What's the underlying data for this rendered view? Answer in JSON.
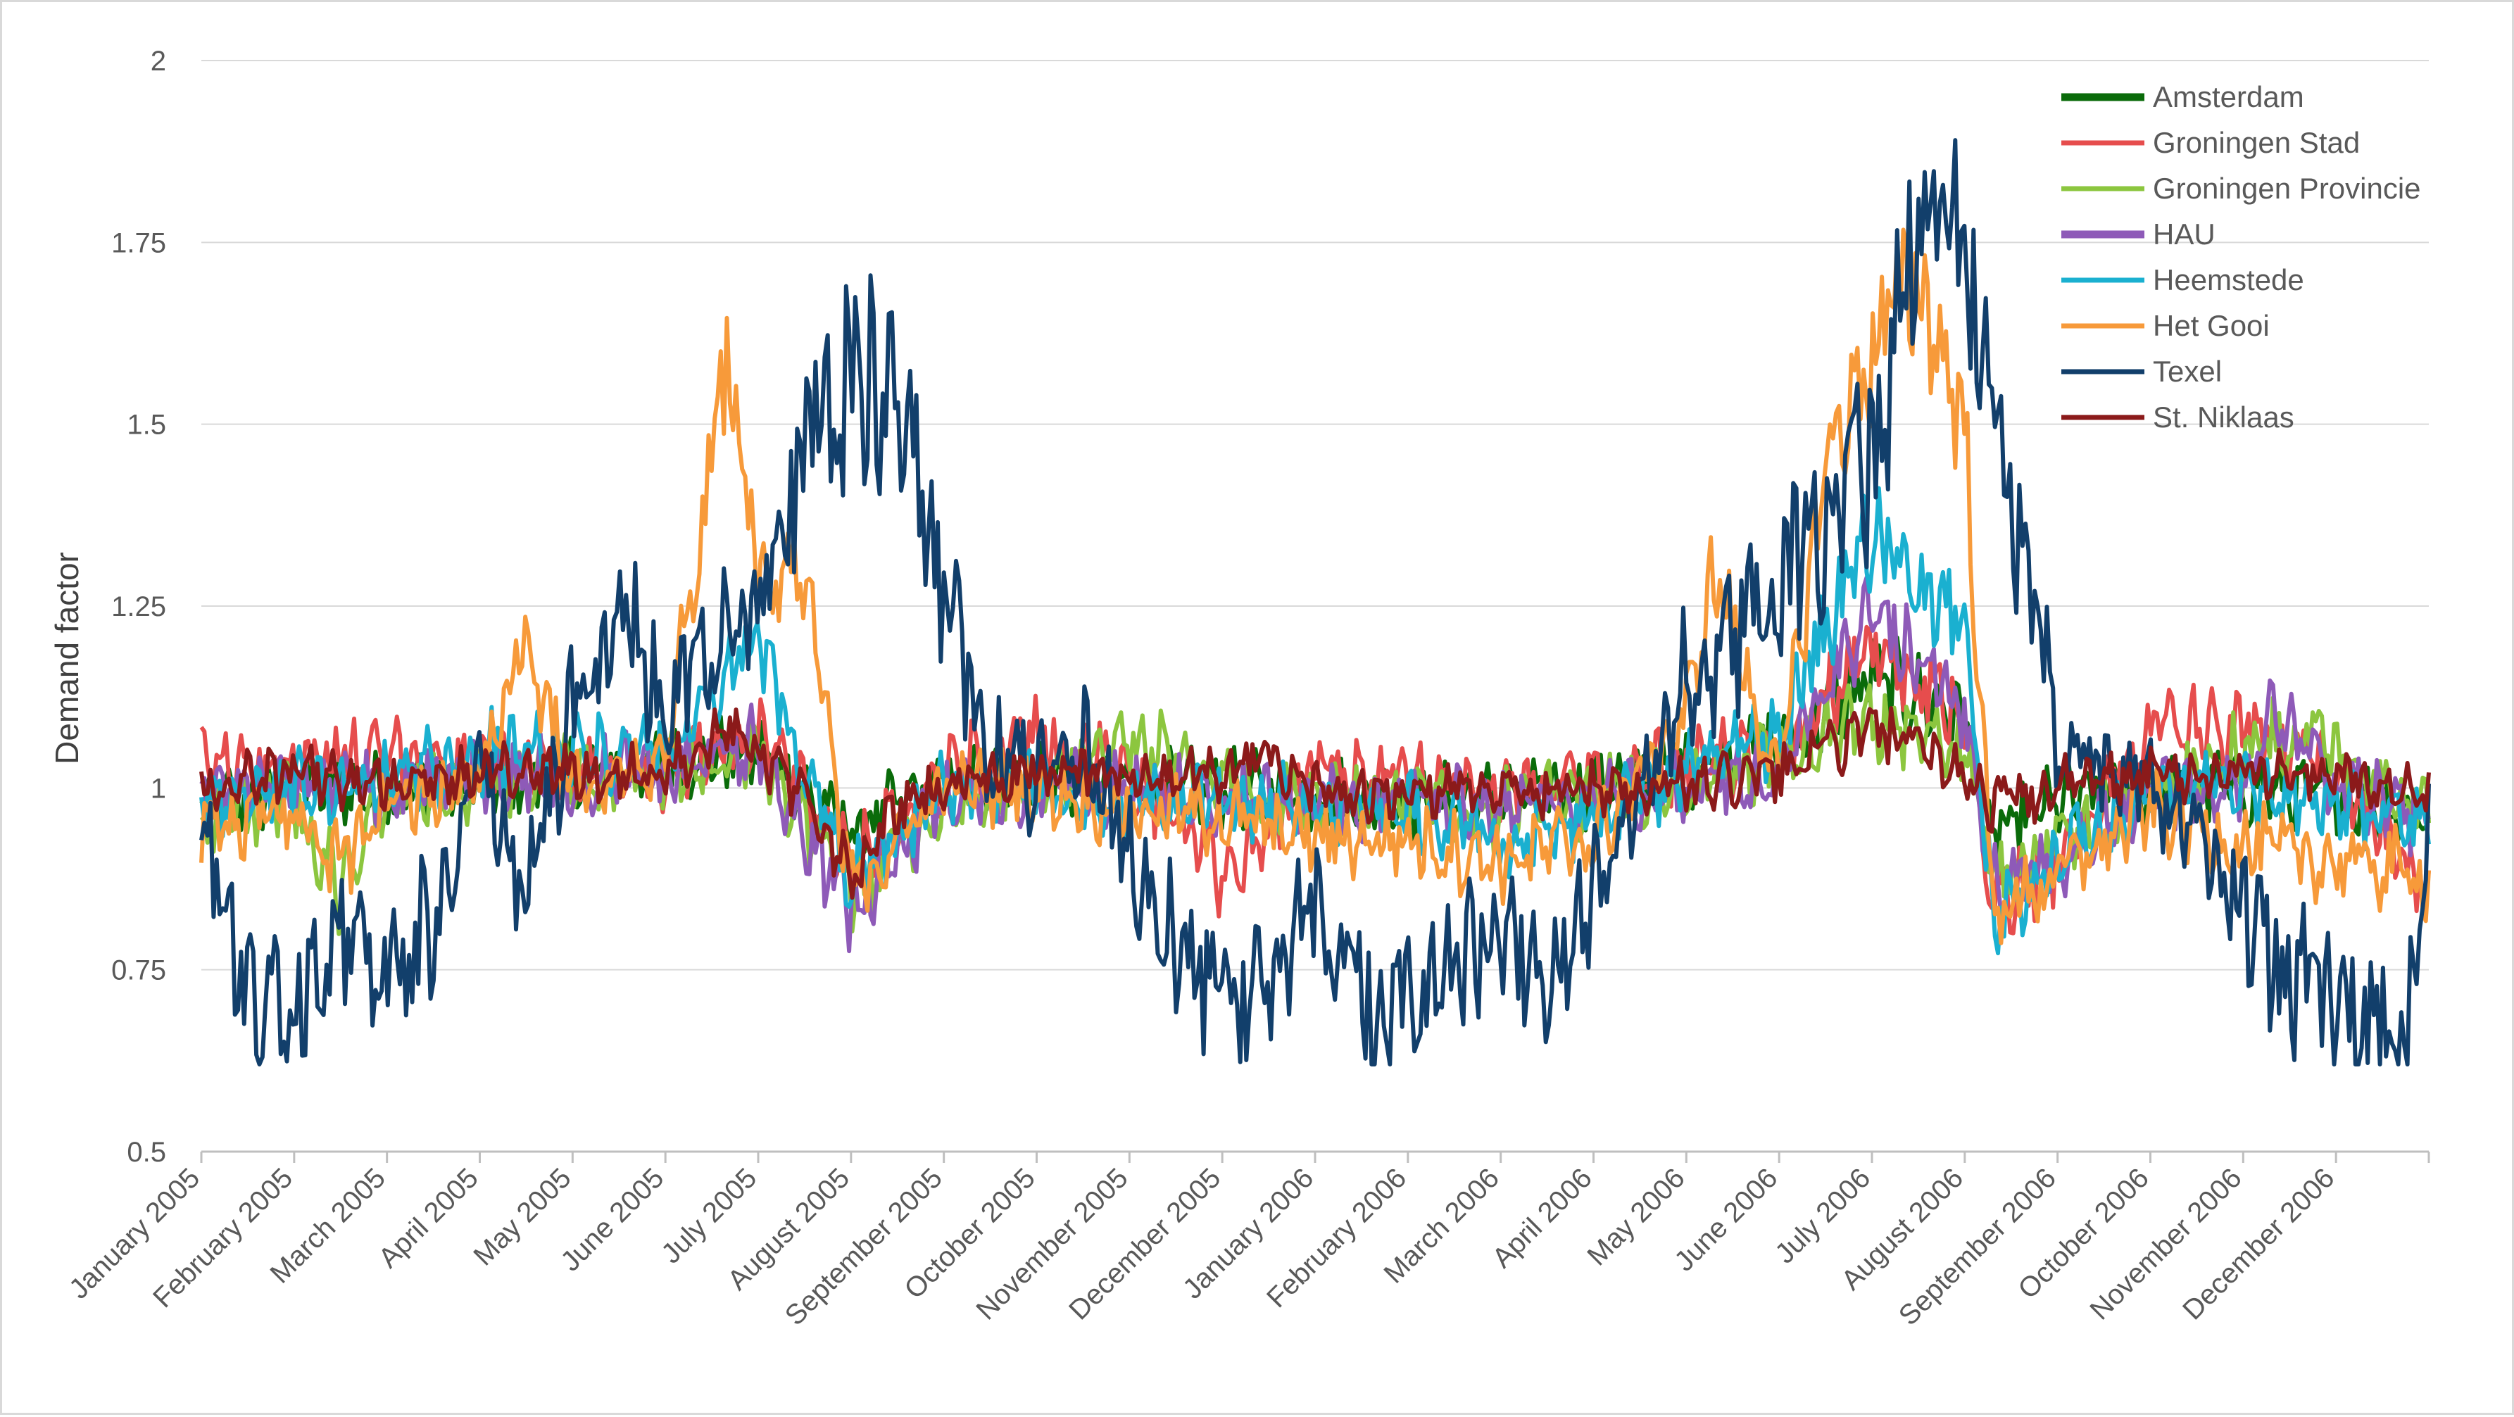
{
  "chart_data": {
    "type": "line",
    "title": "",
    "xlabel": "",
    "ylabel": "Demand factor",
    "ylim": [
      0.5,
      2
    ],
    "yticks": [
      0.5,
      0.75,
      1,
      1.25,
      1.5,
      1.75,
      2
    ],
    "ytick_labels": [
      "0.5",
      "0.75",
      "1",
      "1.25",
      "1.5",
      "1.75",
      "2"
    ],
    "grid": "horizontal",
    "legend_position": "top-right",
    "x_unit": "month index (0 = start of January 2005, 24 = end of December 2006)",
    "xlim": [
      0,
      24
    ],
    "x_tick_labels": [
      "January 2005",
      "February 2005",
      "March 2005",
      "April 2005",
      "May 2005",
      "June 2005",
      "July 2005",
      "August 2005",
      "September 2005",
      "October 2005",
      "November 2005",
      "December 2005",
      "January 2006",
      "February 2006",
      "March 2006",
      "April 2006",
      "May 2006",
      "June 2006",
      "July 2006",
      "August 2006",
      "September 2006",
      "October 2006",
      "November 2006",
      "December 2006"
    ],
    "series": [
      {
        "name": "Amsterdam",
        "color": "#0a6b0a",
        "keypoints": [
          [
            0,
            0.97
          ],
          [
            1,
            1.0
          ],
          [
            2,
            1.0
          ],
          [
            3,
            1.01
          ],
          [
            4,
            1.02
          ],
          [
            5,
            1.03
          ],
          [
            6,
            1.05
          ],
          [
            7,
            0.94
          ],
          [
            8,
            1.01
          ],
          [
            9,
            1.02
          ],
          [
            10,
            1.0
          ],
          [
            11,
            1.0
          ],
          [
            12,
            0.99
          ],
          [
            13,
            0.98
          ],
          [
            14,
            0.99
          ],
          [
            15,
            1.0
          ],
          [
            16,
            1.03
          ],
          [
            17,
            1.06
          ],
          [
            18,
            1.15
          ],
          [
            19,
            1.1
          ],
          [
            19.3,
            0.93
          ],
          [
            20,
            0.98
          ],
          [
            21,
            1.0
          ],
          [
            22,
            1.0
          ],
          [
            23,
            0.99
          ],
          [
            24,
            0.96
          ]
        ]
      },
      {
        "name": "Groningen Stad",
        "color": "#e64d4d",
        "keypoints": [
          [
            0,
            1.03
          ],
          [
            1,
            1.04
          ],
          [
            2,
            1.04
          ],
          [
            3,
            1.03
          ],
          [
            4,
            1.03
          ],
          [
            5,
            1.02
          ],
          [
            6,
            1.08
          ],
          [
            7,
            0.9
          ],
          [
            8,
            1.02
          ],
          [
            9,
            1.07
          ],
          [
            10,
            1.02
          ],
          [
            11,
            0.88
          ],
          [
            12,
            1.02
          ],
          [
            13,
            1.01
          ],
          [
            14,
            1.0
          ],
          [
            15,
            1.01
          ],
          [
            16,
            1.03
          ],
          [
            17,
            1.05
          ],
          [
            18,
            1.18
          ],
          [
            19,
            1.1
          ],
          [
            19.3,
            0.83
          ],
          [
            20,
            0.9
          ],
          [
            21,
            1.08
          ],
          [
            22,
            1.08
          ],
          [
            23,
            1.03
          ],
          [
            24,
            0.85
          ]
        ]
      },
      {
        "name": "Groningen Provincie",
        "color": "#8cc63f",
        "keypoints": [
          [
            0,
            0.96
          ],
          [
            1,
            0.98
          ],
          [
            1.5,
            0.86
          ],
          [
            2,
            0.99
          ],
          [
            3,
            1.0
          ],
          [
            4,
            1.02
          ],
          [
            5,
            1.02
          ],
          [
            6,
            1.05
          ],
          [
            7,
            0.86
          ],
          [
            8,
            0.98
          ],
          [
            9,
            1.0
          ],
          [
            10,
            1.07
          ],
          [
            11,
            1.0
          ],
          [
            12,
            0.99
          ],
          [
            13,
            0.98
          ],
          [
            14,
            0.97
          ],
          [
            15,
            0.99
          ],
          [
            16,
            1.0
          ],
          [
            17,
            1.04
          ],
          [
            18,
            1.1
          ],
          [
            19,
            1.05
          ],
          [
            19.3,
            0.88
          ],
          [
            20,
            0.92
          ],
          [
            21,
            1.0
          ],
          [
            22,
            1.05
          ],
          [
            22.7,
            1.08
          ],
          [
            23,
            1.05
          ],
          [
            24,
            0.97
          ]
        ]
      },
      {
        "name": "HAU",
        "color": "#8e5ab8",
        "keypoints": [
          [
            0,
            1.0
          ],
          [
            1,
            1.01
          ],
          [
            2,
            1.0
          ],
          [
            3,
            1.02
          ],
          [
            4,
            1.02
          ],
          [
            5,
            1.03
          ],
          [
            6,
            1.06
          ],
          [
            7,
            0.83
          ],
          [
            8,
            0.98
          ],
          [
            9,
            1.0
          ],
          [
            10,
            1.0
          ],
          [
            11,
            0.98
          ],
          [
            12,
            0.99
          ],
          [
            13,
            0.98
          ],
          [
            14,
            0.98
          ],
          [
            15,
            0.99
          ],
          [
            16,
            1.0
          ],
          [
            17,
            1.02
          ],
          [
            18,
            1.25
          ],
          [
            19,
            1.1
          ],
          [
            19.3,
            0.86
          ],
          [
            20,
            0.9
          ],
          [
            21,
            1.0
          ],
          [
            22,
            1.0
          ],
          [
            22.3,
            1.1
          ],
          [
            23,
            1.0
          ],
          [
            24,
            0.96
          ]
        ]
      },
      {
        "name": "Heemstede",
        "color": "#1ab0d0",
        "keypoints": [
          [
            0,
            0.98
          ],
          [
            1,
            1.0
          ],
          [
            2,
            1.01
          ],
          [
            3,
            1.05
          ],
          [
            4,
            1.05
          ],
          [
            5,
            1.05
          ],
          [
            6,
            1.2
          ],
          [
            7,
            0.86
          ],
          [
            8,
            1.0
          ],
          [
            9,
            1.0
          ],
          [
            10,
            0.98
          ],
          [
            11,
            0.98
          ],
          [
            12,
            0.98
          ],
          [
            13,
            0.97
          ],
          [
            14,
            0.92
          ],
          [
            15,
            0.96
          ],
          [
            16,
            1.02
          ],
          [
            17,
            1.08
          ],
          [
            18,
            1.35
          ],
          [
            19,
            1.2
          ],
          [
            19.3,
            0.83
          ],
          [
            20,
            0.9
          ],
          [
            21,
            1.0
          ],
          [
            22,
            1.0
          ],
          [
            23,
            0.98
          ],
          [
            24,
            0.94
          ]
        ]
      },
      {
        "name": "Het Gooi",
        "color": "#f79a3a",
        "keypoints": [
          [
            0,
            0.95
          ],
          [
            1,
            0.97
          ],
          [
            1.5,
            0.9
          ],
          [
            2,
            0.98
          ],
          [
            3,
            1.02
          ],
          [
            3.5,
            1.2
          ],
          [
            4,
            1.0
          ],
          [
            5,
            1.05
          ],
          [
            5.7,
            1.6
          ],
          [
            6,
            1.3
          ],
          [
            6.5,
            1.3
          ],
          [
            7,
            0.86
          ],
          [
            8,
            1.0
          ],
          [
            9,
            1.0
          ],
          [
            10,
            0.97
          ],
          [
            11,
            0.96
          ],
          [
            12,
            0.93
          ],
          [
            13,
            0.93
          ],
          [
            14,
            0.9
          ],
          [
            15,
            0.93
          ],
          [
            16,
            1.1
          ],
          [
            16.3,
            1.3
          ],
          [
            17,
            1.0
          ],
          [
            17.5,
            1.45
          ],
          [
            18,
            1.6
          ],
          [
            18.5,
            1.7
          ],
          [
            19,
            1.5
          ],
          [
            19.3,
            0.83
          ],
          [
            20,
            0.88
          ],
          [
            21,
            0.97
          ],
          [
            22,
            0.92
          ],
          [
            23,
            0.9
          ],
          [
            24,
            0.88
          ]
        ]
      },
      {
        "name": "Texel",
        "color": "#123f6b",
        "keypoints": [
          [
            0,
            0.95
          ],
          [
            0.5,
            0.7
          ],
          [
            1,
            0.7
          ],
          [
            1.5,
            0.8
          ],
          [
            2,
            0.75
          ],
          [
            2.5,
            0.8
          ],
          [
            3,
            1.05
          ],
          [
            3.5,
            0.85
          ],
          [
            4,
            1.1
          ],
          [
            4.5,
            1.25
          ],
          [
            5,
            1.1
          ],
          [
            5.5,
            1.2
          ],
          [
            6,
            1.25
          ],
          [
            6.6,
            1.5
          ],
          [
            7,
            1.55
          ],
          [
            7.5,
            1.55
          ],
          [
            8,
            1.25
          ],
          [
            8.5,
            1.05
          ],
          [
            9,
            1.0
          ],
          [
            9.5,
            1.05
          ],
          [
            10,
            0.92
          ],
          [
            10.5,
            0.78
          ],
          [
            11,
            0.72
          ],
          [
            11.5,
            0.72
          ],
          [
            12,
            0.85
          ],
          [
            12.5,
            0.7
          ],
          [
            13,
            0.7
          ],
          [
            14,
            0.8
          ],
          [
            14.5,
            0.75
          ],
          [
            15,
            0.85
          ],
          [
            15.5,
            1.0
          ],
          [
            16,
            1.15
          ],
          [
            16.5,
            1.2
          ],
          [
            17,
            1.3
          ],
          [
            17.5,
            1.35
          ],
          [
            18,
            1.45
          ],
          [
            18.6,
            1.85
          ],
          [
            19,
            1.75
          ],
          [
            19.3,
            1.5
          ],
          [
            19.8,
            1.25
          ],
          [
            20,
            1.05
          ],
          [
            20.5,
            1.05
          ],
          [
            21,
            1.0
          ],
          [
            21.5,
            0.95
          ],
          [
            22,
            0.85
          ],
          [
            22.5,
            0.72
          ],
          [
            23,
            0.7
          ],
          [
            23.5,
            0.66
          ],
          [
            23.75,
            0.65
          ],
          [
            24,
            0.95
          ]
        ]
      },
      {
        "name": "St. Niklaas",
        "color": "#8b1a1a",
        "keypoints": [
          [
            0,
            1.0
          ],
          [
            1,
            1.02
          ],
          [
            2,
            1.0
          ],
          [
            3,
            1.02
          ],
          [
            4,
            1.02
          ],
          [
            5,
            1.02
          ],
          [
            5.7,
            1.1
          ],
          [
            6,
            1.05
          ],
          [
            6.5,
            0.98
          ],
          [
            7,
            0.88
          ],
          [
            7.5,
            0.97
          ],
          [
            8,
            1.0
          ],
          [
            9,
            1.02
          ],
          [
            10,
            1.02
          ],
          [
            11,
            1.02
          ],
          [
            11.5,
            1.05
          ],
          [
            12,
            0.99
          ],
          [
            13,
            1.0
          ],
          [
            14,
            1.0
          ],
          [
            15,
            1.0
          ],
          [
            16,
            1.0
          ],
          [
            17,
            1.02
          ],
          [
            18,
            1.08
          ],
          [
            19,
            1.02
          ],
          [
            19.3,
            0.98
          ],
          [
            20,
            1.0
          ],
          [
            21,
            1.02
          ],
          [
            22,
            1.02
          ],
          [
            23,
            1.02
          ],
          [
            24,
            0.98
          ]
        ]
      }
    ]
  }
}
